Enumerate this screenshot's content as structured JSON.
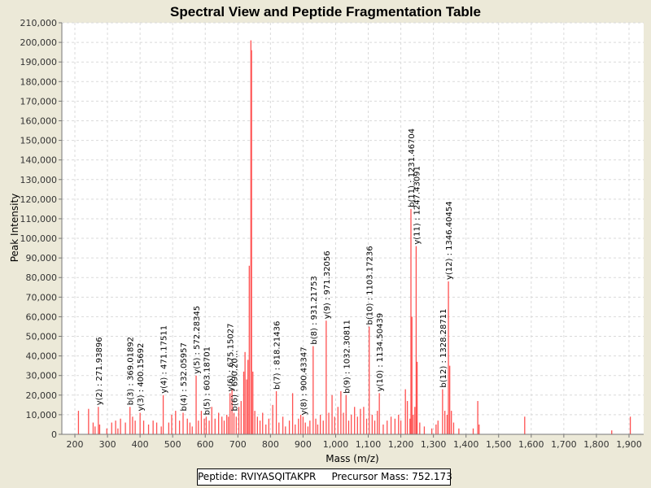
{
  "chart_data": {
    "type": "bar",
    "title": "Spectral View and Peptide Fragmentation Table",
    "xlabel": "Mass (m/z)",
    "ylabel": "Peak Intensity",
    "xlim": [
      160,
      1945
    ],
    "ylim": [
      0,
      210000
    ],
    "xticks": [
      200,
      300,
      400,
      500,
      600,
      700,
      800,
      900,
      1000,
      1100,
      1200,
      1300,
      1400,
      1500,
      1600,
      1700,
      1800,
      1900
    ],
    "xtick_labels": [
      "200",
      "300",
      "400",
      "500",
      "600",
      "700",
      "800",
      "900",
      "1,000",
      "1,100",
      "1,200",
      "1,300",
      "1,400",
      "1,500",
      "1,600",
      "1,700",
      "1,800",
      "1,900"
    ],
    "yticks": [
      0,
      10000,
      20000,
      30000,
      40000,
      50000,
      60000,
      70000,
      80000,
      90000,
      100000,
      110000,
      120000,
      130000,
      140000,
      150000,
      160000,
      170000,
      180000,
      190000,
      200000,
      210000
    ],
    "ytick_labels": [
      "0",
      "10,000",
      "20,000",
      "30,000",
      "40,000",
      "50,000",
      "60,000",
      "70,000",
      "80,000",
      "90,000",
      "100,000",
      "110,000",
      "120,000",
      "130,000",
      "140,000",
      "150,000",
      "160,000",
      "170,000",
      "180,000",
      "190,000",
      "200,000",
      "210,000"
    ],
    "grid": true,
    "peak_color": "#ff5050",
    "peaks": [
      {
        "x": 211,
        "y": 12000
      },
      {
        "x": 242,
        "y": 13000
      },
      {
        "x": 256,
        "y": 6000
      },
      {
        "x": 262,
        "y": 4000
      },
      {
        "x": 272,
        "y": 14000
      },
      {
        "x": 276,
        "y": 5000
      },
      {
        "x": 298,
        "y": 3000
      },
      {
        "x": 313,
        "y": 6000
      },
      {
        "x": 325,
        "y": 7000
      },
      {
        "x": 332,
        "y": 3000
      },
      {
        "x": 340,
        "y": 8000
      },
      {
        "x": 355,
        "y": 6000
      },
      {
        "x": 369,
        "y": 14000
      },
      {
        "x": 377,
        "y": 9000
      },
      {
        "x": 385,
        "y": 7000
      },
      {
        "x": 400,
        "y": 11000
      },
      {
        "x": 411,
        "y": 7000
      },
      {
        "x": 426,
        "y": 5000
      },
      {
        "x": 440,
        "y": 7000
      },
      {
        "x": 451,
        "y": 6000
      },
      {
        "x": 465,
        "y": 4000
      },
      {
        "x": 471,
        "y": 20000
      },
      {
        "x": 488,
        "y": 6000
      },
      {
        "x": 497,
        "y": 10000
      },
      {
        "x": 509,
        "y": 12000
      },
      {
        "x": 521,
        "y": 7000
      },
      {
        "x": 532,
        "y": 11000
      },
      {
        "x": 545,
        "y": 8000
      },
      {
        "x": 553,
        "y": 6000
      },
      {
        "x": 560,
        "y": 4000
      },
      {
        "x": 572,
        "y": 30000
      },
      {
        "x": 579,
        "y": 7000
      },
      {
        "x": 588,
        "y": 12000
      },
      {
        "x": 597,
        "y": 8000
      },
      {
        "x": 603,
        "y": 9000
      },
      {
        "x": 612,
        "y": 7000
      },
      {
        "x": 620,
        "y": 14000
      },
      {
        "x": 630,
        "y": 8000
      },
      {
        "x": 641,
        "y": 11000
      },
      {
        "x": 651,
        "y": 9000
      },
      {
        "x": 658,
        "y": 7000
      },
      {
        "x": 666,
        "y": 10000
      },
      {
        "x": 671,
        "y": 9000
      },
      {
        "x": 676,
        "y": 21000
      },
      {
        "x": 682,
        "y": 23000
      },
      {
        "x": 688,
        "y": 11000
      },
      {
        "x": 695,
        "y": 9000
      },
      {
        "x": 703,
        "y": 14000
      },
      {
        "x": 710,
        "y": 17000
      },
      {
        "x": 718,
        "y": 32000
      },
      {
        "x": 722,
        "y": 42000
      },
      {
        "x": 727,
        "y": 28000
      },
      {
        "x": 731,
        "y": 38000
      },
      {
        "x": 735,
        "y": 86000
      },
      {
        "x": 740,
        "y": 201000
      },
      {
        "x": 742,
        "y": 196000
      },
      {
        "x": 746,
        "y": 32000
      },
      {
        "x": 752,
        "y": 12000
      },
      {
        "x": 760,
        "y": 9000
      },
      {
        "x": 768,
        "y": 7000
      },
      {
        "x": 776,
        "y": 11000
      },
      {
        "x": 786,
        "y": 5000
      },
      {
        "x": 795,
        "y": 8000
      },
      {
        "x": 807,
        "y": 15000
      },
      {
        "x": 818,
        "y": 22000
      },
      {
        "x": 826,
        "y": 6000
      },
      {
        "x": 838,
        "y": 9000
      },
      {
        "x": 846,
        "y": 4000
      },
      {
        "x": 858,
        "y": 7000
      },
      {
        "x": 868,
        "y": 21000
      },
      {
        "x": 876,
        "y": 5000
      },
      {
        "x": 886,
        "y": 8000
      },
      {
        "x": 893,
        "y": 10000
      },
      {
        "x": 900,
        "y": 9000
      },
      {
        "x": 907,
        "y": 6000
      },
      {
        "x": 915,
        "y": 4000
      },
      {
        "x": 921,
        "y": 7000
      },
      {
        "x": 931,
        "y": 45000
      },
      {
        "x": 939,
        "y": 8000
      },
      {
        "x": 945,
        "y": 5000
      },
      {
        "x": 953,
        "y": 10000
      },
      {
        "x": 962,
        "y": 7000
      },
      {
        "x": 971,
        "y": 58000
      },
      {
        "x": 979,
        "y": 11000
      },
      {
        "x": 989,
        "y": 20000
      },
      {
        "x": 997,
        "y": 9000
      },
      {
        "x": 1007,
        "y": 14000
      },
      {
        "x": 1016,
        "y": 22000
      },
      {
        "x": 1024,
        "y": 11000
      },
      {
        "x": 1032,
        "y": 20000
      },
      {
        "x": 1040,
        "y": 7000
      },
      {
        "x": 1048,
        "y": 10000
      },
      {
        "x": 1058,
        "y": 14000
      },
      {
        "x": 1067,
        "y": 9000
      },
      {
        "x": 1076,
        "y": 13000
      },
      {
        "x": 1086,
        "y": 14000
      },
      {
        "x": 1095,
        "y": 8000
      },
      {
        "x": 1103,
        "y": 55000
      },
      {
        "x": 1112,
        "y": 10000
      },
      {
        "x": 1120,
        "y": 7000
      },
      {
        "x": 1128,
        "y": 12000
      },
      {
        "x": 1134,
        "y": 21000
      },
      {
        "x": 1146,
        "y": 5000
      },
      {
        "x": 1158,
        "y": 7000
      },
      {
        "x": 1170,
        "y": 9000
      },
      {
        "x": 1182,
        "y": 8000
      },
      {
        "x": 1193,
        "y": 10000
      },
      {
        "x": 1200,
        "y": 7000
      },
      {
        "x": 1214,
        "y": 23000
      },
      {
        "x": 1220,
        "y": 17000
      },
      {
        "x": 1228,
        "y": 8000
      },
      {
        "x": 1231,
        "y": 115000
      },
      {
        "x": 1234,
        "y": 60000
      },
      {
        "x": 1238,
        "y": 10000
      },
      {
        "x": 1243,
        "y": 14000
      },
      {
        "x": 1247,
        "y": 96000
      },
      {
        "x": 1250,
        "y": 37000
      },
      {
        "x": 1258,
        "y": 6000
      },
      {
        "x": 1272,
        "y": 4000
      },
      {
        "x": 1295,
        "y": 3000
      },
      {
        "x": 1308,
        "y": 5000
      },
      {
        "x": 1314,
        "y": 7000
      },
      {
        "x": 1328,
        "y": 23000
      },
      {
        "x": 1335,
        "y": 12000
      },
      {
        "x": 1342,
        "y": 10000
      },
      {
        "x": 1346,
        "y": 78000
      },
      {
        "x": 1350,
        "y": 35000
      },
      {
        "x": 1355,
        "y": 12000
      },
      {
        "x": 1362,
        "y": 6000
      },
      {
        "x": 1378,
        "y": 3000
      },
      {
        "x": 1422,
        "y": 3000
      },
      {
        "x": 1436,
        "y": 17000
      },
      {
        "x": 1440,
        "y": 5000
      },
      {
        "x": 1580,
        "y": 9000
      },
      {
        "x": 1847,
        "y": 2000
      },
      {
        "x": 1904,
        "y": 9000
      }
    ],
    "annotations": [
      {
        "x": 272,
        "y": 14000,
        "label": "y(2) : 271.93896"
      },
      {
        "x": 369,
        "y": 14000,
        "label": "b(3) : 369.01892"
      },
      {
        "x": 400,
        "y": 11000,
        "label": "y(3) : 400.15692"
      },
      {
        "x": 471,
        "y": 20000,
        "label": "y(4) : 471.17511"
      },
      {
        "x": 532,
        "y": 11000,
        "label": "b(4) : 532.05957"
      },
      {
        "x": 572,
        "y": 30000,
        "label": "y(5) : 572.28345"
      },
      {
        "x": 603,
        "y": 9000,
        "label": "b(5) : 603.18701"
      },
      {
        "x": 676,
        "y": 21000,
        "label": "y(6) : 675.15027"
      },
      {
        "x": 688,
        "y": 11000,
        "label": "b(6) : 690.20..."
      },
      {
        "x": 818,
        "y": 22000,
        "label": "b(7) : 818.21436"
      },
      {
        "x": 900,
        "y": 9000,
        "label": "y(8) : 900.43347"
      },
      {
        "x": 931,
        "y": 45000,
        "label": "b(8) : 931.21753"
      },
      {
        "x": 971,
        "y": 58000,
        "label": "y(9) : 971.32056"
      },
      {
        "x": 1032,
        "y": 20000,
        "label": "b(9) : 1032.30811"
      },
      {
        "x": 1103,
        "y": 55000,
        "label": "b(10) : 1103.17236"
      },
      {
        "x": 1134,
        "y": 21000,
        "label": "y(10) : 1134.50439"
      },
      {
        "x": 1231,
        "y": 115000,
        "label": "b(11) : 1231.46704"
      },
      {
        "x": 1247,
        "y": 96000,
        "label": "y(11) : 1247.43091"
      },
      {
        "x": 1328,
        "y": 23000,
        "label": "b(12) : 1328.28711"
      },
      {
        "x": 1346,
        "y": 78000,
        "label": "y(12) : 1346.40454"
      }
    ]
  },
  "footer": {
    "peptide_label": "Peptide: RVIYASQITAKPR",
    "precursor_label": "Precursor Mass: 752.173"
  }
}
